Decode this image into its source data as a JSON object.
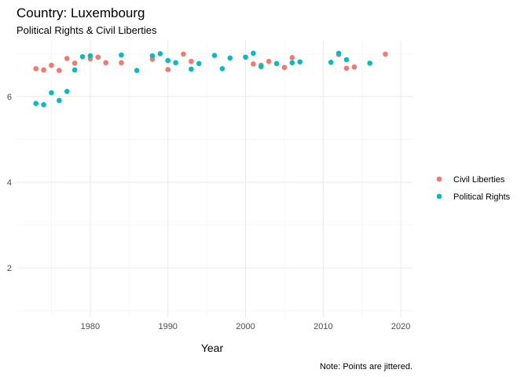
{
  "chart_data": {
    "type": "scatter",
    "title": "Country: Luxembourg",
    "subtitle": "Political Rights & Civil Liberties",
    "xlabel": "Year",
    "ylabel": "",
    "caption": "Note: Points are jittered.",
    "xlim": [
      1970.5,
      2021.5
    ],
    "ylim": [
      0.85,
      7.3
    ],
    "x_ticks": [
      1980,
      1990,
      2000,
      2010,
      2020
    ],
    "y_ticks": [
      2,
      4,
      6
    ],
    "grid": true,
    "legend_position": "right",
    "series": [
      {
        "name": "Civil Liberties",
        "color": "#F8766D",
        "points": [
          [
            1973,
            6.65
          ],
          [
            1974,
            6.62
          ],
          [
            1975,
            6.73
          ],
          [
            1976,
            6.61
          ],
          [
            1977,
            6.89
          ],
          [
            1978,
            6.78
          ],
          [
            1980,
            6.88
          ],
          [
            1981,
            6.92
          ],
          [
            1982,
            6.79
          ],
          [
            1984,
            6.79
          ],
          [
            1988,
            6.87
          ],
          [
            1990,
            6.63
          ],
          [
            1992,
            6.99
          ],
          [
            1993,
            6.82
          ],
          [
            2001,
            6.76
          ],
          [
            2002,
            6.73
          ],
          [
            2003,
            6.82
          ],
          [
            2005,
            6.68
          ],
          [
            2006,
            6.91
          ],
          [
            2012,
            6.98
          ],
          [
            2013,
            6.66
          ],
          [
            2014,
            6.69
          ],
          [
            2018,
            6.99
          ]
        ]
      },
      {
        "name": "Political Rights",
        "color": "#00BFC4",
        "points": [
          [
            1973,
            5.84
          ],
          [
            1974,
            5.81
          ],
          [
            1975,
            6.09
          ],
          [
            1976,
            5.91
          ],
          [
            1977,
            6.12
          ],
          [
            1978,
            6.62
          ],
          [
            1979,
            6.93
          ],
          [
            1980,
            6.95
          ],
          [
            1984,
            6.97
          ],
          [
            1986,
            6.61
          ],
          [
            1988,
            6.95
          ],
          [
            1989,
            7.0
          ],
          [
            1990,
            6.84
          ],
          [
            1991,
            6.79
          ],
          [
            1993,
            6.64
          ],
          [
            1994,
            6.77
          ],
          [
            1996,
            6.96
          ],
          [
            1997,
            6.65
          ],
          [
            1998,
            6.9
          ],
          [
            2000,
            6.92
          ],
          [
            2001,
            7.01
          ],
          [
            2002,
            6.7
          ],
          [
            2004,
            6.77
          ],
          [
            2006,
            6.79
          ],
          [
            2007,
            6.81
          ],
          [
            2011,
            6.8
          ],
          [
            2012,
            7.01
          ],
          [
            2013,
            6.86
          ],
          [
            2016,
            6.78
          ]
        ]
      }
    ]
  }
}
